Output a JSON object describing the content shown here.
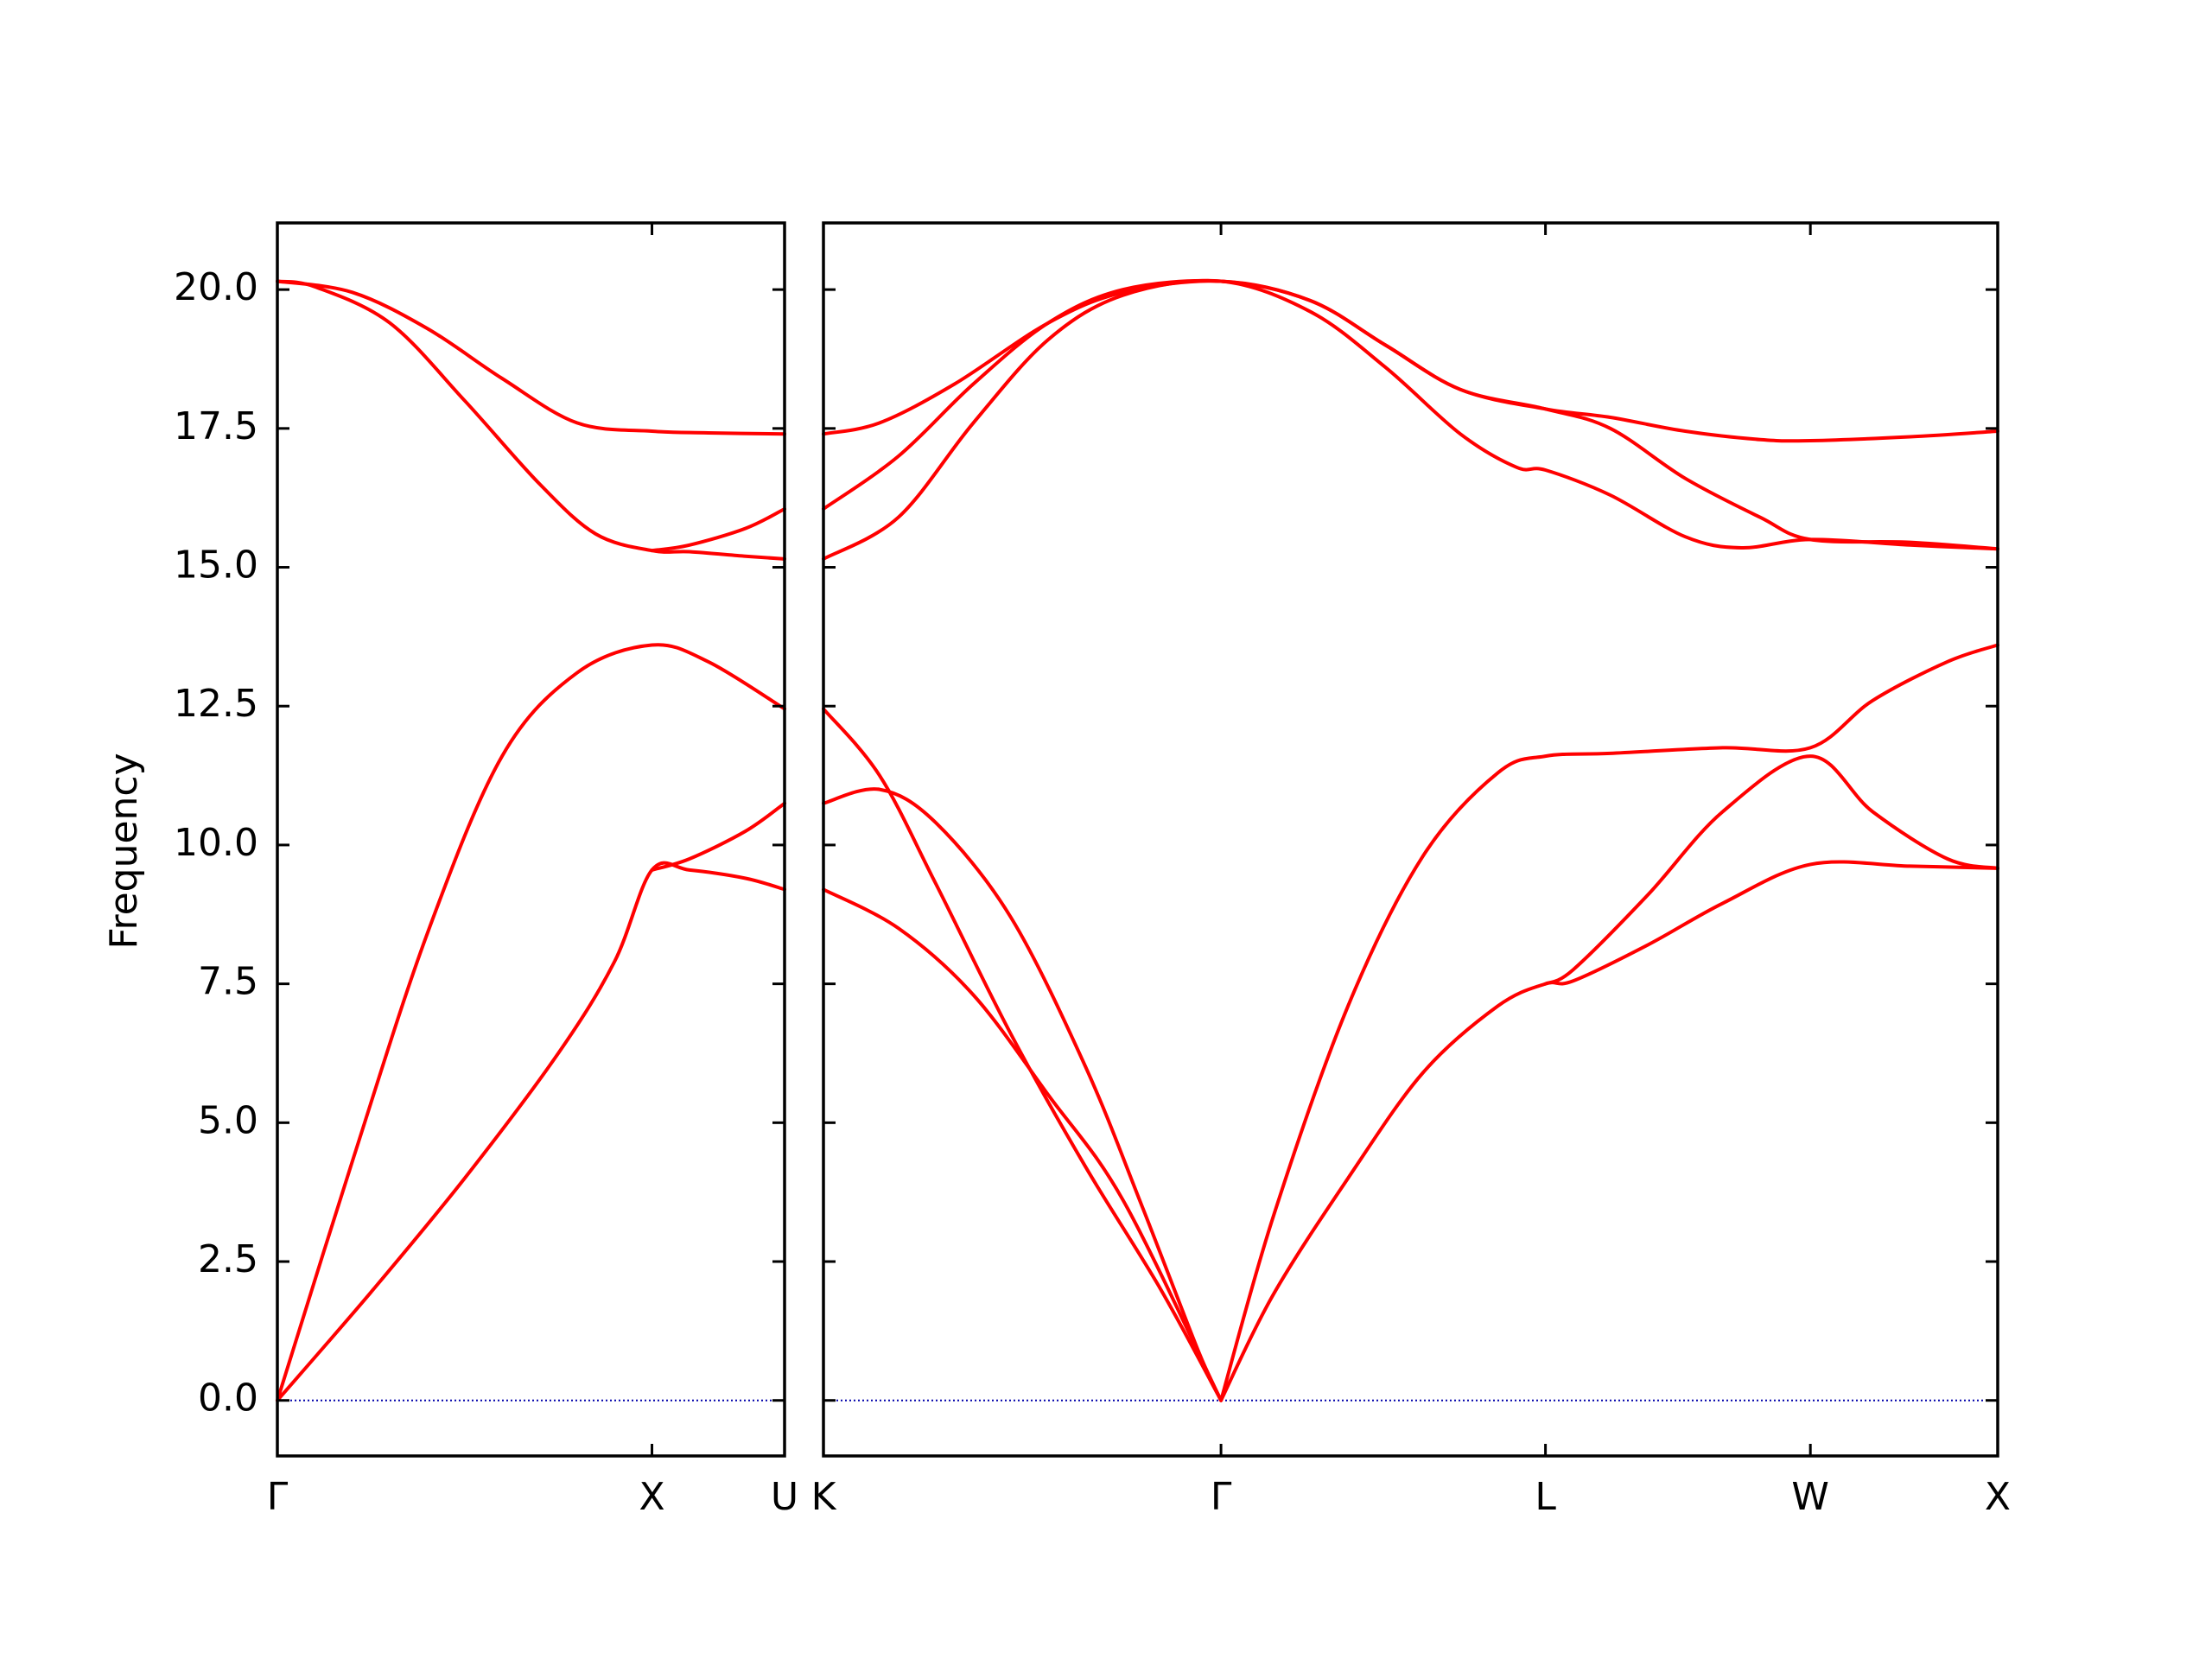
{
  "chart_data": {
    "type": "line",
    "title": "",
    "xlabel": "",
    "ylabel": "Frequency",
    "ylim": [
      -1.0,
      21.2
    ],
    "yticks": [
      "0.0",
      "2.5",
      "5.0",
      "7.5",
      "10.0",
      "12.5",
      "15.0",
      "17.5",
      "20.0"
    ],
    "colors": {
      "bands": "#ff0000",
      "zero_line": "#0000aa",
      "axes": "#000000"
    },
    "grid": false,
    "legend": "none",
    "panels": [
      {
        "name": "Γ-X-U",
        "x_ticks": [
          {
            "pos": 0.0,
            "label": "Γ"
          },
          {
            "pos": 1.0,
            "label": "X"
          },
          {
            "pos": 1.354,
            "label": "U"
          }
        ],
        "xlim": [
          0.0,
          1.354
        ],
        "series": [
          {
            "values": [
              [
                0.0,
                0.0
              ],
              [
                0.25,
                1.95
              ],
              [
                0.5,
                4.0
              ],
              [
                0.75,
                6.25
              ],
              [
                0.9,
                7.9
              ],
              [
                1.0,
                9.55
              ],
              [
                1.1,
                9.55
              ],
              [
                1.25,
                9.4
              ],
              [
                1.354,
                9.2
              ]
            ]
          },
          {
            "values": [
              [
                0.0,
                0.0
              ],
              [
                0.2,
                4.3
              ],
              [
                0.4,
                8.4
              ],
              [
                0.6,
                11.6
              ],
              [
                0.8,
                13.1
              ],
              [
                1.0,
                13.6
              ],
              [
                1.15,
                13.3
              ],
              [
                1.354,
                12.45
              ]
            ]
          },
          {
            "values": [
              [
                0.0,
                20.15
              ],
              [
                0.1,
                20.05
              ],
              [
                0.3,
                19.4
              ],
              [
                0.5,
                18.0
              ],
              [
                0.7,
                16.5
              ],
              [
                0.85,
                15.6
              ],
              [
                1.0,
                15.3
              ],
              [
                1.1,
                15.28
              ],
              [
                1.25,
                15.2
              ],
              [
                1.354,
                15.15
              ]
            ]
          },
          {
            "values": [
              [
                0.0,
                20.15
              ],
              [
                0.2,
                19.95
              ],
              [
                0.4,
                19.3
              ],
              [
                0.6,
                18.4
              ],
              [
                0.8,
                17.6
              ],
              [
                1.0,
                17.45
              ],
              [
                1.15,
                17.42
              ],
              [
                1.354,
                17.4
              ]
            ]
          },
          {
            "values": [
              [
                1.0,
                9.55
              ],
              [
                1.1,
                9.75
              ],
              [
                1.25,
                10.25
              ],
              [
                1.354,
                10.75
              ]
            ]
          },
          {
            "values": [
              [
                1.0,
                15.3
              ],
              [
                1.1,
                15.4
              ],
              [
                1.25,
                15.7
              ],
              [
                1.354,
                16.05
              ]
            ]
          }
        ]
      },
      {
        "name": "K-Γ-L-W-X",
        "x_ticks": [
          {
            "pos": 0.0,
            "label": "K"
          },
          {
            "pos": 1.061,
            "label": "Γ"
          },
          {
            "pos": 1.927,
            "label": "L"
          },
          {
            "pos": 2.634,
            "label": "W"
          },
          {
            "pos": 3.134,
            "label": "X"
          }
        ],
        "xlim": [
          0.0,
          3.134
        ],
        "series": [
          {
            "values": [
              [
                0.0,
                9.2
              ],
              [
                0.2,
                8.5
              ],
              [
                0.4,
                7.3
              ],
              [
                0.6,
                5.5
              ],
              [
                0.8,
                3.6
              ],
              [
                1.061,
                0.0
              ]
            ]
          },
          {
            "values": [
              [
                0.0,
                12.45
              ],
              [
                0.15,
                11.25
              ],
              [
                0.3,
                9.3
              ],
              [
                0.5,
                6.6
              ],
              [
                0.7,
                4.2
              ],
              [
                0.9,
                2.0
              ],
              [
                1.061,
                0.0
              ]
            ]
          },
          {
            "values": [
              [
                0.0,
                10.75
              ],
              [
                0.15,
                11.0
              ],
              [
                0.3,
                10.4
              ],
              [
                0.5,
                8.7
              ],
              [
                0.7,
                6.0
              ],
              [
                0.85,
                3.5
              ],
              [
                1.0,
                0.9
              ],
              [
                1.061,
                0.0
              ]
            ]
          },
          {
            "values": [
              [
                1.061,
                0.0
              ],
              [
                1.2,
                1.9
              ],
              [
                1.4,
                4.0
              ],
              [
                1.6,
                5.9
              ],
              [
                1.8,
                7.1
              ],
              [
                1.927,
                7.5
              ],
              [
                2.0,
                7.55
              ],
              [
                2.2,
                8.2
              ],
              [
                2.4,
                8.95
              ],
              [
                2.634,
                9.65
              ],
              [
                2.9,
                9.62
              ],
              [
                3.134,
                9.58
              ]
            ]
          },
          {
            "values": [
              [
                1.927,
                7.5
              ],
              [
                2.0,
                7.75
              ],
              [
                2.2,
                9.1
              ],
              [
                2.4,
                10.6
              ],
              [
                2.634,
                11.6
              ],
              [
                2.8,
                10.6
              ],
              [
                3.0,
                9.75
              ],
              [
                3.134,
                9.58
              ]
            ]
          },
          {
            "values": [
              [
                1.061,
                0.0
              ],
              [
                1.2,
                3.3
              ],
              [
                1.4,
                7.1
              ],
              [
                1.6,
                9.8
              ],
              [
                1.8,
                11.3
              ],
              [
                1.927,
                11.6
              ],
              [
                2.1,
                11.65
              ],
              [
                2.4,
                11.75
              ],
              [
                2.634,
                11.75
              ],
              [
                2.8,
                12.6
              ],
              [
                3.0,
                13.3
              ],
              [
                3.134,
                13.6
              ]
            ]
          },
          {
            "values": [
              [
                0.0,
                15.15
              ],
              [
                0.2,
                15.9
              ],
              [
                0.4,
                17.6
              ],
              [
                0.6,
                19.1
              ],
              [
                0.8,
                19.9
              ],
              [
                1.061,
                20.15
              ],
              [
                1.3,
                19.6
              ],
              [
                1.5,
                18.6
              ],
              [
                1.7,
                17.4
              ],
              [
                1.85,
                16.8
              ],
              [
                1.927,
                16.75
              ],
              [
                2.1,
                16.3
              ],
              [
                2.3,
                15.55
              ],
              [
                2.45,
                15.35
              ],
              [
                2.634,
                15.5
              ],
              [
                2.9,
                15.4
              ],
              [
                3.134,
                15.33
              ]
            ]
          },
          {
            "values": [
              [
                0.0,
                16.05
              ],
              [
                0.2,
                17.0
              ],
              [
                0.4,
                18.3
              ],
              [
                0.6,
                19.4
              ],
              [
                0.8,
                20.0
              ],
              [
                1.061,
                20.15
              ],
              [
                1.3,
                19.8
              ],
              [
                1.5,
                19.0
              ],
              [
                1.7,
                18.2
              ],
              [
                1.927,
                17.85
              ],
              [
                2.1,
                17.5
              ],
              [
                2.3,
                16.6
              ],
              [
                2.5,
                15.9
              ],
              [
                2.634,
                15.5
              ],
              [
                2.9,
                15.45
              ],
              [
                3.134,
                15.33
              ]
            ]
          },
          {
            "values": [
              [
                0.0,
                17.4
              ],
              [
                0.15,
                17.6
              ],
              [
                0.35,
                18.3
              ],
              [
                0.6,
                19.4
              ],
              [
                0.8,
                19.95
              ],
              [
                1.061,
                20.15
              ],
              [
                1.3,
                19.8
              ],
              [
                1.5,
                19.0
              ],
              [
                1.7,
                18.2
              ],
              [
                1.927,
                17.85
              ],
              [
                2.1,
                17.7
              ],
              [
                2.3,
                17.45
              ],
              [
                2.5,
                17.3
              ],
              [
                2.634,
                17.28
              ],
              [
                2.9,
                17.35
              ],
              [
                3.134,
                17.45
              ]
            ]
          }
        ]
      }
    ]
  }
}
